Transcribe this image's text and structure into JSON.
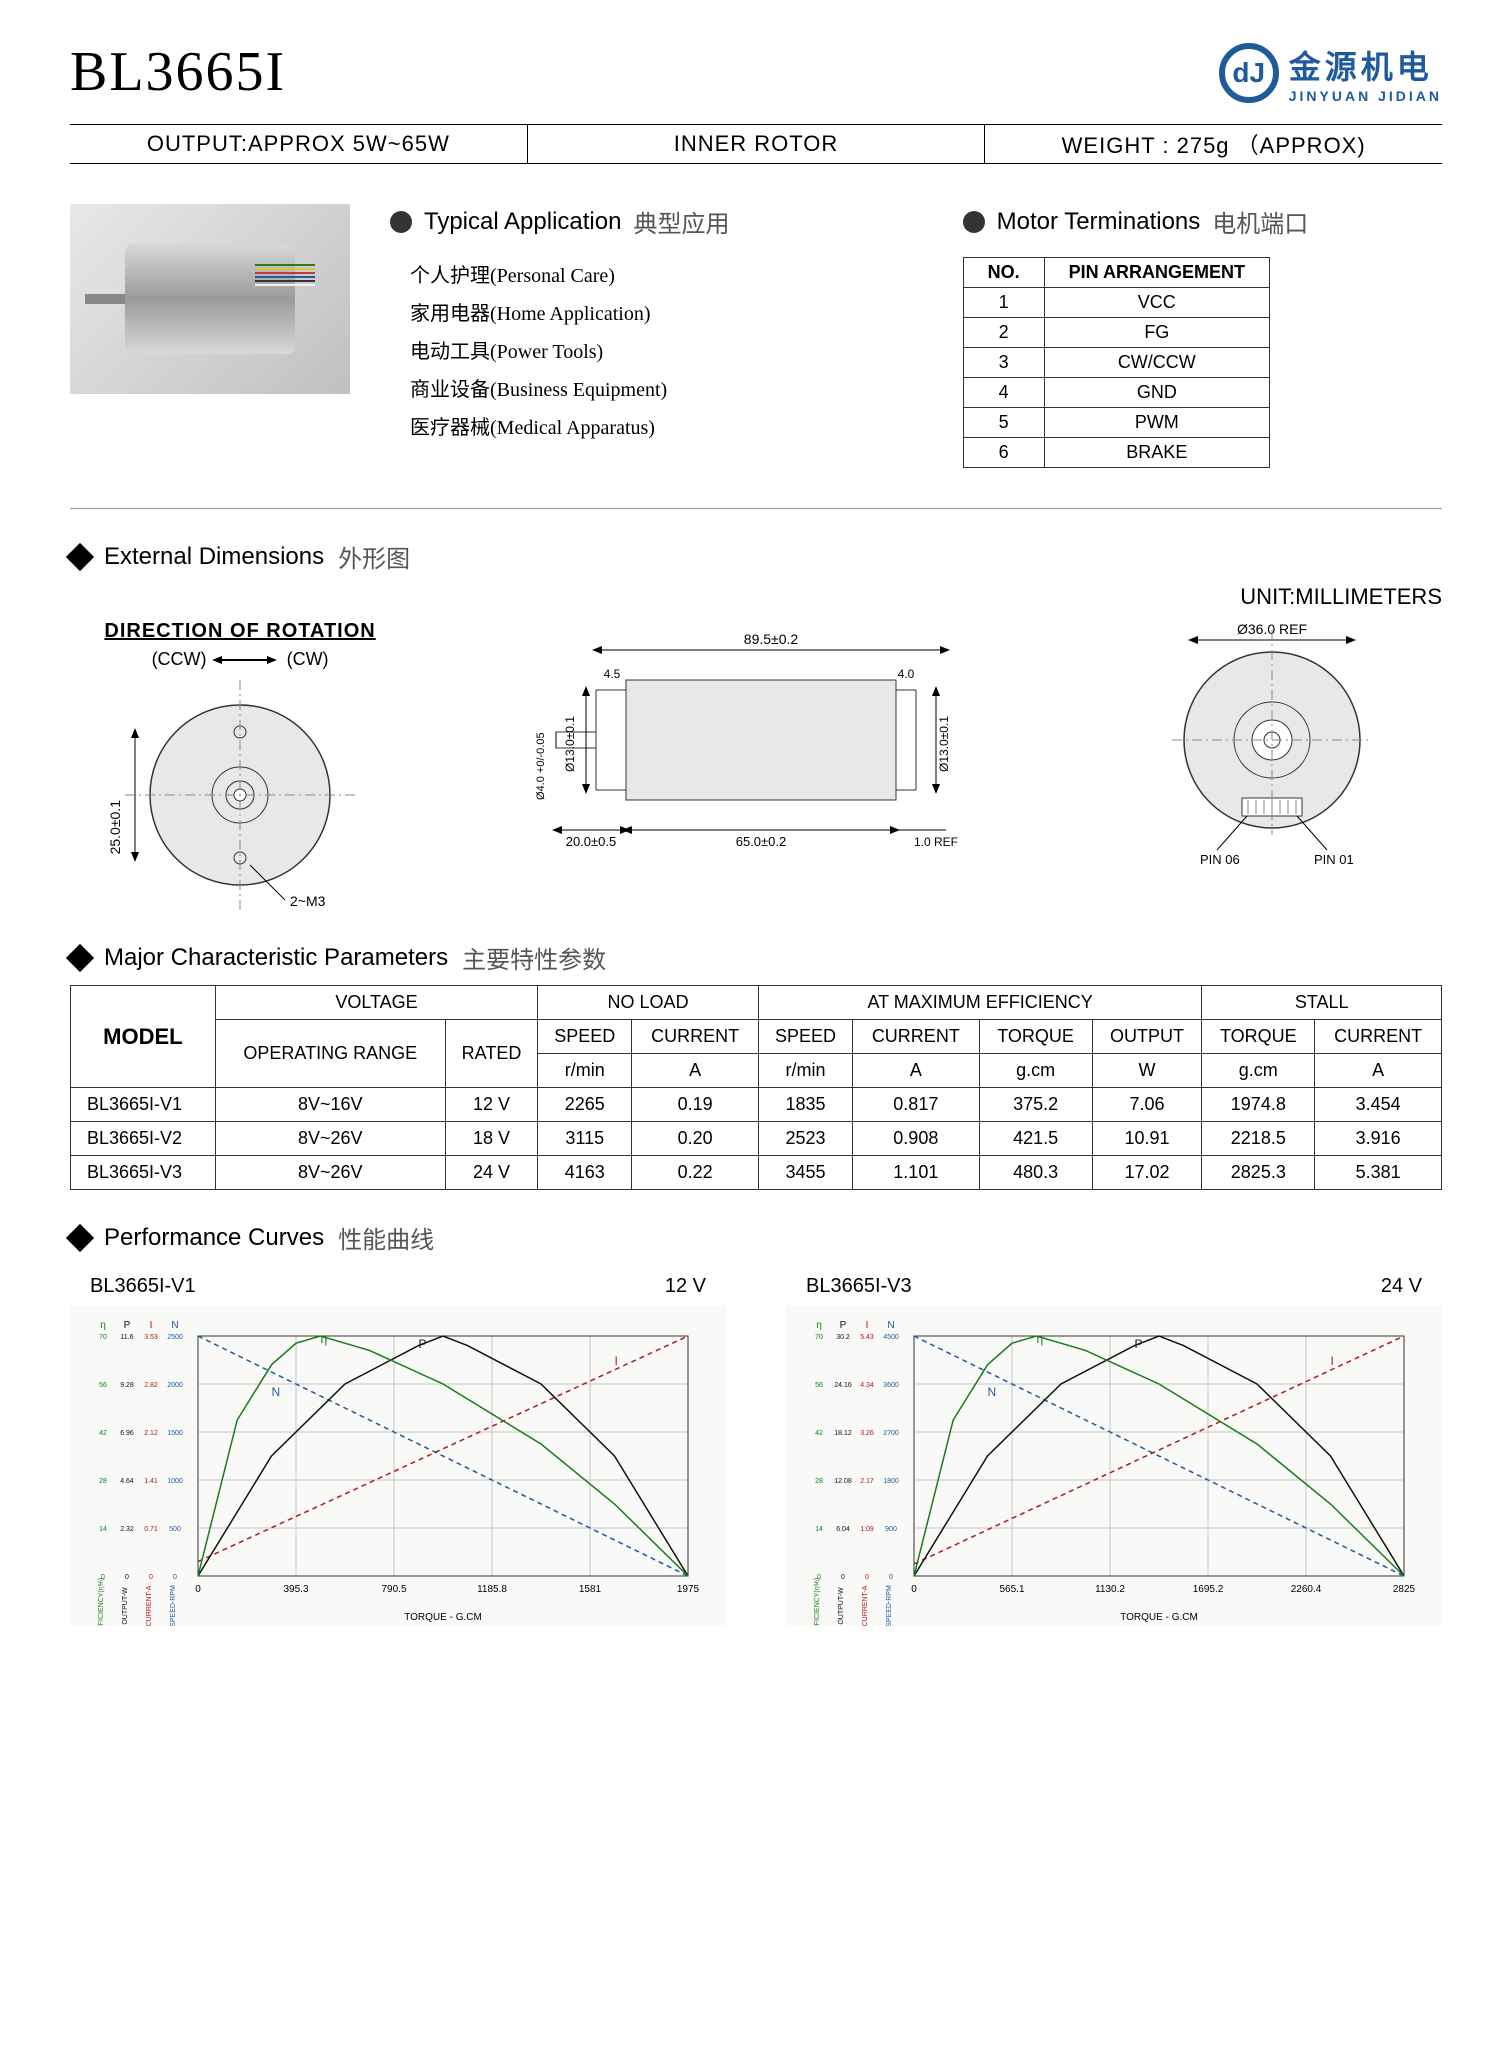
{
  "title": "BL3665I",
  "logo": {
    "cn": "金源机电",
    "en": "JINYUAN JIDIAN",
    "glyph": "dJ"
  },
  "spec_bar": {
    "output": "OUTPUT:APPROX  5W~65W",
    "rotor": "INNER  ROTOR",
    "weight": "WEIGHT : 275g （APPROX)"
  },
  "applications": {
    "title_en": "Typical  Application",
    "title_cn": "典型应用",
    "items": [
      "个人护理(Personal Care)",
      "家用电器(Home Application)",
      "电动工具(Power Tools)",
      "商业设备(Business Equipment)",
      "医疗器械(Medical Apparatus)"
    ]
  },
  "terminations": {
    "title_en": "Motor Terminations",
    "title_cn": "电机端口",
    "header_no": "NO.",
    "header_pin": "PIN ARRANGEMENT",
    "rows": [
      {
        "no": "1",
        "pin": "VCC"
      },
      {
        "no": "2",
        "pin": "FG"
      },
      {
        "no": "3",
        "pin": "CW/CCW"
      },
      {
        "no": "4",
        "pin": "GND"
      },
      {
        "no": "5",
        "pin": "PWM"
      },
      {
        "no": "6",
        "pin": "BRAKE"
      }
    ]
  },
  "dimensions": {
    "title_en": "External  Dimensions",
    "title_cn": "外形图",
    "unit": "UNIT:MILLIMETERS",
    "rotation_label": "DIRECTION OF ROTATION",
    "ccw": "(CCW)",
    "cw": "(CW)",
    "front_diameter": "Ø36.0 REF",
    "pin06": "PIN 06",
    "pin01": "PIN 01",
    "d1": "25.0±0.1",
    "d2": "2~M3",
    "side_top": "89.5±0.2",
    "side_left_h": "Ø13.0±0.1",
    "side_left_small": "4.5",
    "side_right_small": "4.0",
    "side_right_h": "Ø13.0±0.1",
    "shaft_d": "Ø4.0 +0/-0.05",
    "shaft_len": "20.0±0.5",
    "body_len": "65.0±0.2",
    "rear_len": "1.0 REF"
  },
  "parameters": {
    "title_en": "Major  Characteristic Parameters",
    "title_cn": "主要特性参数",
    "headers_top": [
      "MODEL",
      "VOLTAGE",
      "NO   LOAD",
      "AT  MAXIMUM  EFFICIENCY",
      "STALL"
    ],
    "headers_mid": [
      "OPERATING RANGE",
      "RATED",
      "SPEED",
      "CURRENT",
      "SPEED",
      "CURRENT",
      "TORQUE",
      "OUTPUT",
      "TORQUE",
      "CURRENT"
    ],
    "headers_unit": [
      "",
      "",
      "r/min",
      "A",
      "r/min",
      "A",
      "g.cm",
      "W",
      "g.cm",
      "A"
    ],
    "rows": [
      {
        "model": "BL3665I-V1",
        "range": "8V~16V",
        "rated": "12 V",
        "nl_speed": "2265",
        "nl_curr": "0.19",
        "me_speed": "1835",
        "me_curr": "0.817",
        "me_torque": "375.2",
        "me_out": "7.06",
        "st_torque": "1974.8",
        "st_curr": "3.454"
      },
      {
        "model": "BL3665I-V2",
        "range": "8V~26V",
        "rated": "18 V",
        "nl_speed": "3115",
        "nl_curr": "0.20",
        "me_speed": "2523",
        "me_curr": "0.908",
        "me_torque": "421.5",
        "me_out": "10.91",
        "st_torque": "2218.5",
        "st_curr": "3.916"
      },
      {
        "model": "BL3665I-V3",
        "range": "8V~26V",
        "rated": "24 V",
        "nl_speed": "4163",
        "nl_curr": "0.22",
        "me_speed": "3455",
        "me_curr": "1.101",
        "me_torque": "480.3",
        "me_out": "17.02",
        "st_torque": "2825.3",
        "st_curr": "5.381"
      }
    ]
  },
  "curves": {
    "title_en": "Performance Curves",
    "title_cn": "性能曲线",
    "chart_v1": {
      "model": "BL3665I-V1",
      "voltage": "12 V",
      "xlabel": "TORQUE - G.CM",
      "xticks": [
        0,
        395.3,
        790.5,
        1185.8,
        1581.0,
        1975.0
      ],
      "axis_colors": {
        "eff": "#1a7a1a",
        "out": "#111",
        "curr": "#b01919",
        "speed": "#1e5a9c"
      },
      "eff_label": "EFFICIENCY(η%)",
      "out_label": "OUTPUT-W",
      "curr_label": "CURRENT-A",
      "speed_label": "SPEED-RPM",
      "eff_max": 70,
      "out_max": 11.595,
      "curr_max": 3.53,
      "speed_max": 2500,
      "grid_color": "#c5c5c5",
      "bg": "#f9f9f7",
      "speed": [
        [
          0,
          1
        ],
        [
          1,
          0
        ]
      ],
      "current": [
        [
          0,
          0.06
        ],
        [
          1,
          1
        ]
      ],
      "output": [
        [
          0,
          0
        ],
        [
          0.15,
          0.5
        ],
        [
          0.3,
          0.8
        ],
        [
          0.45,
          0.96
        ],
        [
          0.5,
          1.0
        ],
        [
          0.55,
          0.96
        ],
        [
          0.7,
          0.8
        ],
        [
          0.85,
          0.5
        ],
        [
          1,
          0
        ]
      ],
      "efficiency": [
        [
          0,
          0
        ],
        [
          0.08,
          0.65
        ],
        [
          0.15,
          0.88
        ],
        [
          0.2,
          0.97
        ],
        [
          0.25,
          1.0
        ],
        [
          0.35,
          0.94
        ],
        [
          0.5,
          0.8
        ],
        [
          0.7,
          0.55
        ],
        [
          0.85,
          0.3
        ],
        [
          1,
          0
        ]
      ]
    },
    "chart_v3": {
      "model": "BL3665I-V3",
      "voltage": "24 V",
      "xlabel": "TORQUE - G.CM",
      "xticks": [
        0,
        565.1,
        1130.2,
        1695.2,
        2260.4,
        2825.0
      ],
      "axis_colors": {
        "eff": "#1a7a1a",
        "out": "#111",
        "curr": "#b01919",
        "speed": "#1e5a9c"
      },
      "eff_label": "EFFICIENCY(η%)",
      "out_label": "OUTPUT-W",
      "curr_label": "CURRENT-A",
      "speed_label": "SPEED-RPM",
      "eff_max": 70,
      "out_max": 30.2,
      "curr_max": 5.43,
      "speed_max": 4500,
      "grid_color": "#c5c5c5",
      "bg": "#f9f9f7",
      "speed": [
        [
          0,
          1
        ],
        [
          1,
          0
        ]
      ],
      "current": [
        [
          0,
          0.05
        ],
        [
          1,
          1
        ]
      ],
      "output": [
        [
          0,
          0
        ],
        [
          0.15,
          0.5
        ],
        [
          0.3,
          0.8
        ],
        [
          0.45,
          0.96
        ],
        [
          0.5,
          1.0
        ],
        [
          0.55,
          0.96
        ],
        [
          0.7,
          0.8
        ],
        [
          0.85,
          0.5
        ],
        [
          1,
          0
        ]
      ],
      "efficiency": [
        [
          0,
          0
        ],
        [
          0.08,
          0.65
        ],
        [
          0.15,
          0.88
        ],
        [
          0.2,
          0.97
        ],
        [
          0.25,
          1.0
        ],
        [
          0.35,
          0.94
        ],
        [
          0.5,
          0.8
        ],
        [
          0.7,
          0.55
        ],
        [
          0.85,
          0.3
        ],
        [
          1,
          0
        ]
      ]
    }
  },
  "wire_colors": [
    "#2a7a2a",
    "#d6c63a",
    "#c43a3a",
    "#2a5a9c",
    "#333",
    "#f2f2f2"
  ]
}
